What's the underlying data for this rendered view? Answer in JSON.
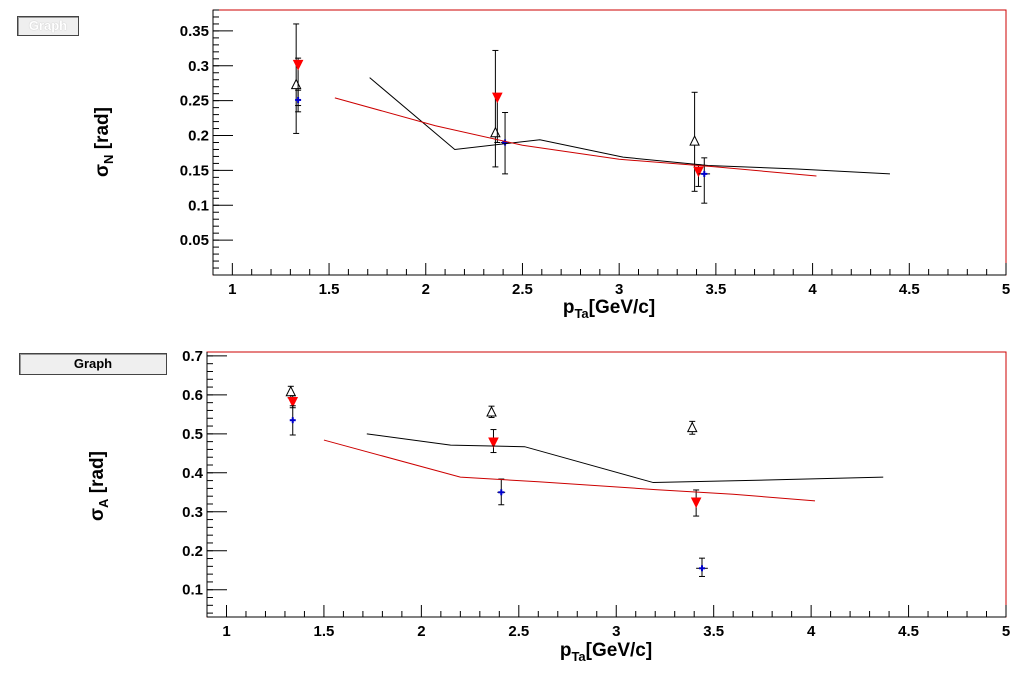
{
  "panels": [
    {
      "graph_label": "Graph",
      "ylabel_main": "σ",
      "ylabel_sub": "N",
      "ylabel_unit": " [rad]",
      "xlabel_main": "p",
      "xlabel_sub": "Ta",
      "xlabel_unit": "[GeV/c]"
    },
    {
      "graph_label": "Graph",
      "ylabel_main": "σ",
      "ylabel_sub": "A",
      "ylabel_unit": " [rad]",
      "xlabel_main": "p",
      "xlabel_sub": "Ta",
      "xlabel_unit": "[GeV/c]"
    }
  ],
  "chart_data": [
    {
      "type": "scatter",
      "xlim": [
        0.9,
        5.0
      ],
      "ylim": [
        0.0,
        0.38
      ],
      "xticks": [
        "1",
        "1.5",
        "2",
        "2.5",
        "3",
        "3.5",
        "4",
        "4.5",
        "5"
      ],
      "yticks": [
        "0.05",
        "0.1",
        "0.15",
        "0.2",
        "0.25",
        "0.3",
        "0.35"
      ],
      "xlabel": "p_Ta [GeV/c]",
      "ylabel": "σ_N [rad]",
      "frame_color": "#cc0000",
      "series": [
        {
          "marker": "triangle-open",
          "color": "#000000",
          "points": [
            {
              "x": 1.33,
              "y": 0.273,
              "ylo": 0.203,
              "yhi": 0.36
            },
            {
              "x": 2.36,
              "y": 0.204,
              "ylo": 0.155,
              "yhi": 0.322
            },
            {
              "x": 3.39,
              "y": 0.192,
              "ylo": 0.12,
              "yhi": 0.262
            }
          ]
        },
        {
          "marker": "triangle-down",
          "color": "#ff0000",
          "points": [
            {
              "x": 1.34,
              "y": 0.302,
              "ylo": 0.243,
              "yhi": 0.311
            },
            {
              "x": 2.37,
              "y": 0.255,
              "ylo": 0.19,
              "yhi": 0.258
            },
            {
              "x": 3.41,
              "y": 0.149,
              "ylo": 0.127,
              "yhi": 0.158
            }
          ]
        },
        {
          "marker": "star",
          "color": "#0000cc",
          "points": [
            {
              "x": 1.34,
              "y": 0.251,
              "ylo": 0.234,
              "yhi": 0.265
            },
            {
              "x": 2.41,
              "y": 0.19,
              "ylo": 0.145,
              "yhi": 0.233,
              "xerr": 0.02
            },
            {
              "x": 3.44,
              "y": 0.145,
              "ylo": 0.103,
              "yhi": 0.168,
              "xerr": 0.03
            }
          ]
        },
        {
          "marker": "line",
          "color": "#000000",
          "points": [
            {
              "x": 1.71,
              "y": 0.283
            },
            {
              "x": 2.15,
              "y": 0.18
            },
            {
              "x": 2.59,
              "y": 0.194
            },
            {
              "x": 3.02,
              "y": 0.169
            },
            {
              "x": 3.46,
              "y": 0.157
            },
            {
              "x": 3.92,
              "y": 0.152
            },
            {
              "x": 4.4,
              "y": 0.145
            }
          ]
        },
        {
          "marker": "line",
          "color": "#cc0000",
          "points": [
            {
              "x": 1.53,
              "y": 0.254
            },
            {
              "x": 2.05,
              "y": 0.214
            },
            {
              "x": 2.5,
              "y": 0.186
            },
            {
              "x": 3.0,
              "y": 0.166
            },
            {
              "x": 3.5,
              "y": 0.155
            },
            {
              "x": 4.02,
              "y": 0.142
            }
          ]
        }
      ]
    },
    {
      "type": "scatter",
      "xlim": [
        0.9,
        5.0
      ],
      "ylim": [
        0.03,
        0.71
      ],
      "xticks": [
        "1",
        "1.5",
        "2",
        "2.5",
        "3",
        "3.5",
        "4",
        "4.5",
        "5"
      ],
      "yticks": [
        "0.1",
        "0.2",
        "0.3",
        "0.4",
        "0.5",
        "0.6",
        "0.7"
      ],
      "xlabel": "p_Ta [GeV/c]",
      "ylabel": "σ_A [rad]",
      "frame_color": "#cc0000",
      "series": [
        {
          "marker": "triangle-open",
          "color": "#000000",
          "points": [
            {
              "x": 1.33,
              "y": 0.608,
              "ylo": 0.592,
              "yhi": 0.622
            },
            {
              "x": 2.36,
              "y": 0.556,
              "ylo": 0.542,
              "yhi": 0.571
            },
            {
              "x": 3.39,
              "y": 0.516,
              "ylo": 0.499,
              "yhi": 0.532
            }
          ]
        },
        {
          "marker": "triangle-down",
          "color": "#ff0000",
          "points": [
            {
              "x": 1.34,
              "y": 0.583,
              "ylo": 0.567,
              "yhi": 0.598
            },
            {
              "x": 2.37,
              "y": 0.479,
              "ylo": 0.452,
              "yhi": 0.511
            },
            {
              "x": 3.41,
              "y": 0.325,
              "ylo": 0.289,
              "yhi": 0.356
            }
          ]
        },
        {
          "marker": "star",
          "color": "#0000cc",
          "points": [
            {
              "x": 1.34,
              "y": 0.535,
              "ylo": 0.497,
              "yhi": 0.572
            },
            {
              "x": 2.41,
              "y": 0.35,
              "ylo": 0.318,
              "yhi": 0.384,
              "xerr": 0.02
            },
            {
              "x": 3.44,
              "y": 0.155,
              "ylo": 0.134,
              "yhi": 0.181,
              "xerr": 0.03
            }
          ]
        },
        {
          "marker": "line",
          "color": "#000000",
          "points": [
            {
              "x": 1.72,
              "y": 0.5
            },
            {
              "x": 2.15,
              "y": 0.471
            },
            {
              "x": 2.53,
              "y": 0.467
            },
            {
              "x": 3.19,
              "y": 0.375
            },
            {
              "x": 3.9,
              "y": 0.383
            },
            {
              "x": 4.37,
              "y": 0.389
            }
          ]
        },
        {
          "marker": "line",
          "color": "#cc0000",
          "points": [
            {
              "x": 1.5,
              "y": 0.484
            },
            {
              "x": 2.2,
              "y": 0.389
            },
            {
              "x": 2.6,
              "y": 0.377
            },
            {
              "x": 3.2,
              "y": 0.357
            },
            {
              "x": 3.6,
              "y": 0.345
            },
            {
              "x": 4.02,
              "y": 0.328
            }
          ]
        }
      ]
    }
  ]
}
